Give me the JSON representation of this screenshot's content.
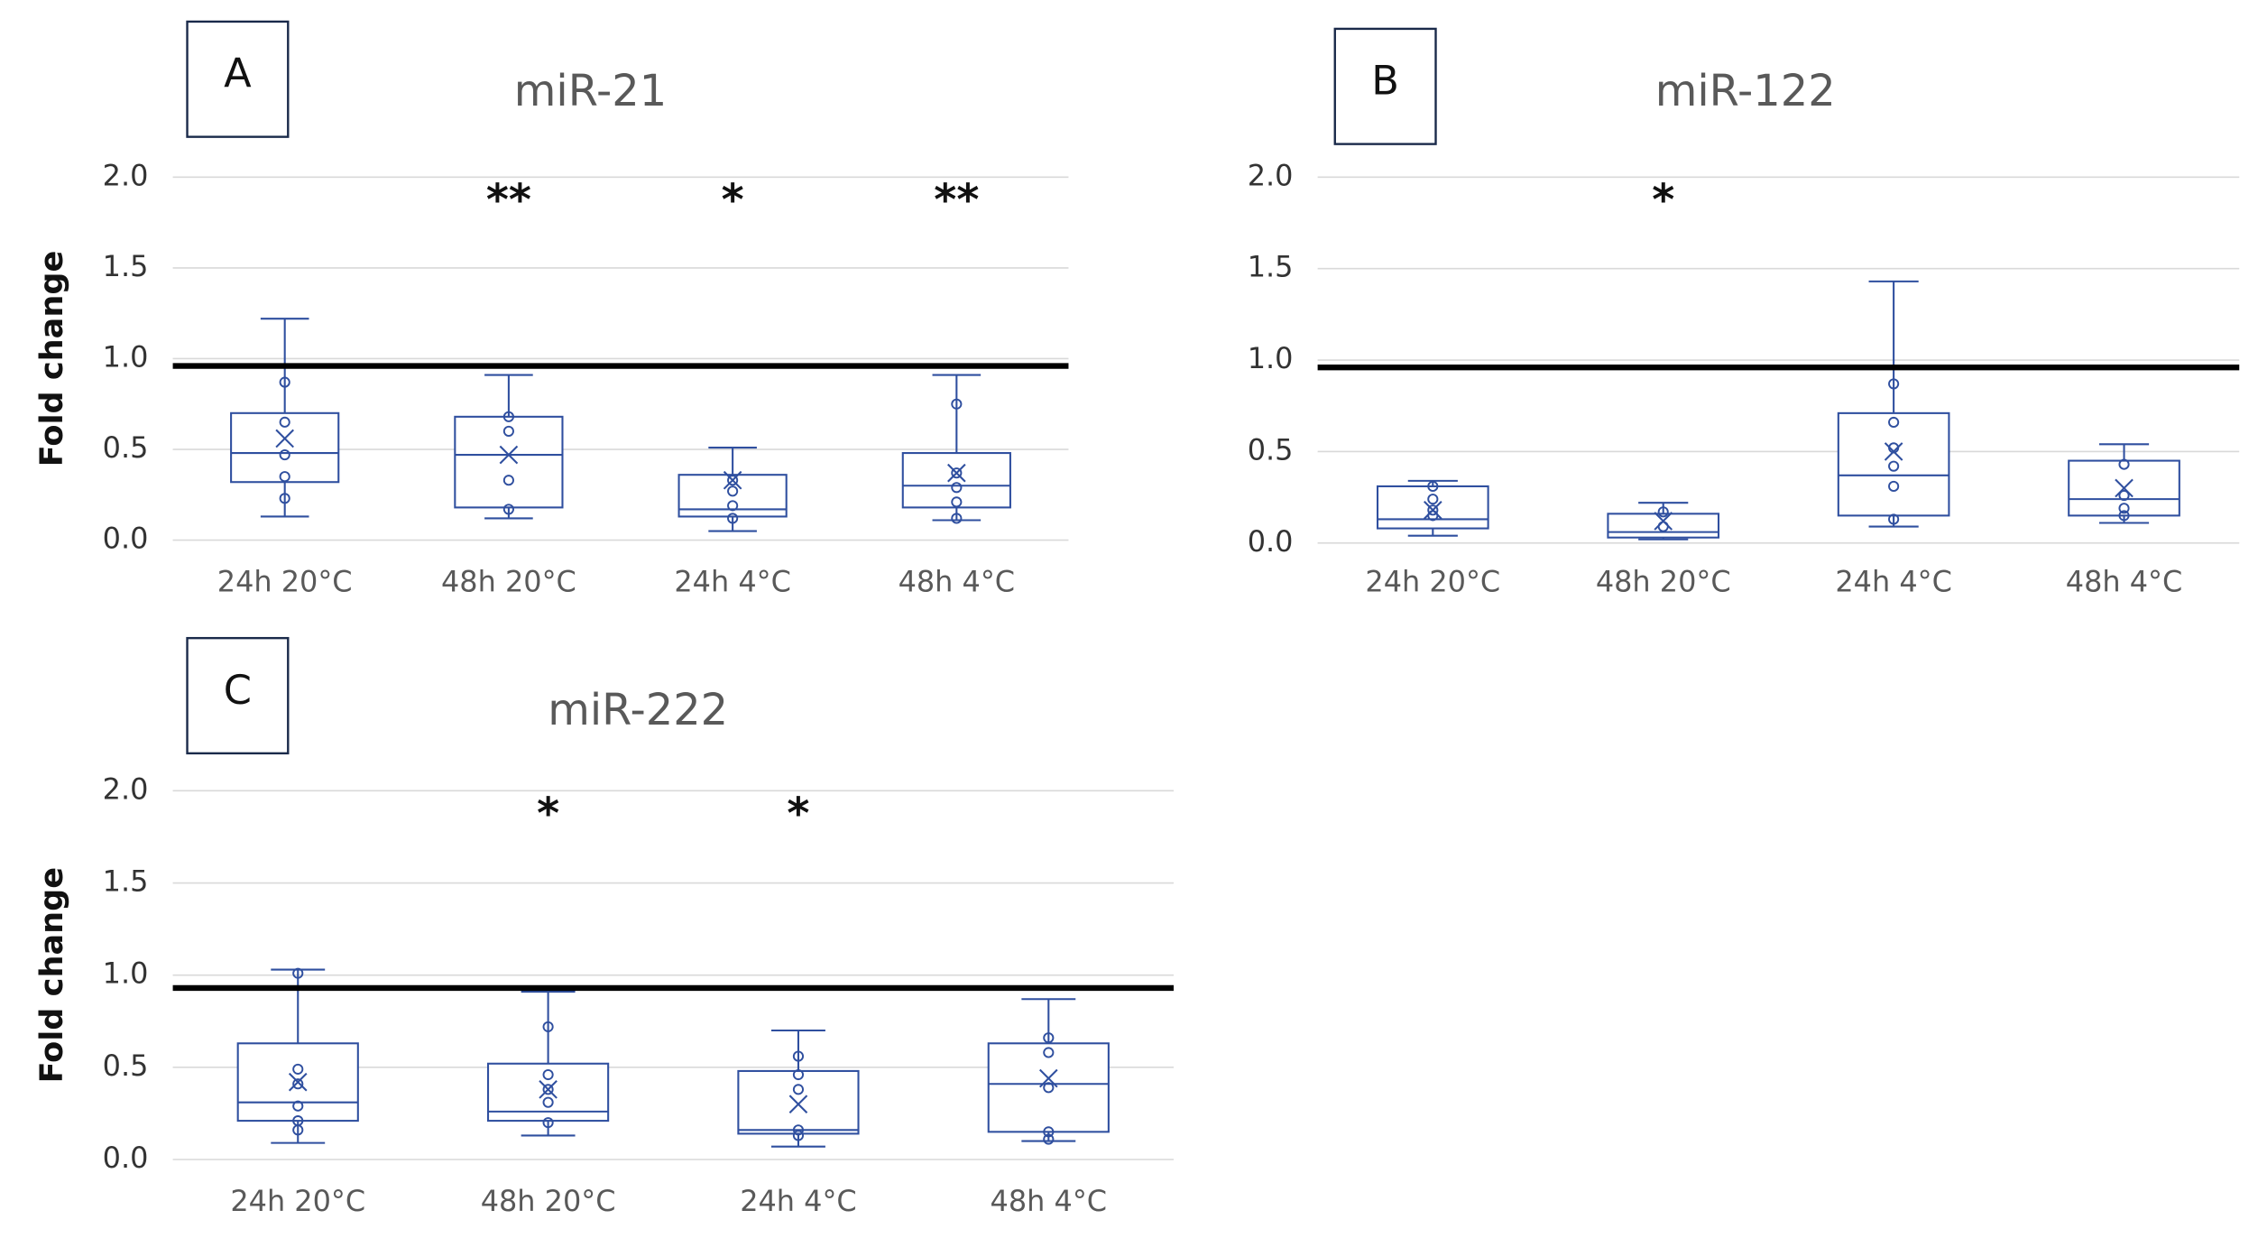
{
  "chart_data": [
    {
      "type": "box",
      "panel": "A",
      "title": "miR-21",
      "y_label": "Fold change",
      "color": "#2f4f9f",
      "categories": [
        "24h 20°C",
        "48h 20°C",
        "24h 4°C",
        "48h 4°C"
      ],
      "ylim": [
        0,
        2.0
      ],
      "yticks": [
        {
          "value": 0,
          "label": "0.0"
        },
        {
          "value": 0.5,
          "label": "0.5"
        },
        {
          "value": 1,
          "label": "1.0"
        },
        {
          "value": 1.5,
          "label": "1.5"
        },
        {
          "value": 2,
          "label": "2.0"
        }
      ],
      "grid": true,
      "reference_line": 0.96,
      "significance": [
        null,
        "**",
        "*",
        "**"
      ],
      "boxes": [
        {
          "min": 0.13,
          "q1": 0.32,
          "median": 0.48,
          "q3": 0.7,
          "max": 1.22,
          "mean": 0.56,
          "points": [
            0.87,
            0.65,
            0.47,
            0.35,
            0.23
          ]
        },
        {
          "min": 0.12,
          "q1": 0.18,
          "median": 0.47,
          "q3": 0.68,
          "max": 0.91,
          "mean": 0.47,
          "points": [
            0.68,
            0.6,
            0.33,
            0.17
          ]
        },
        {
          "min": 0.05,
          "q1": 0.13,
          "median": 0.17,
          "q3": 0.36,
          "max": 0.51,
          "mean": 0.33,
          "points": [
            0.33,
            0.27,
            0.19,
            0.12
          ]
        },
        {
          "min": 0.11,
          "q1": 0.18,
          "median": 0.3,
          "q3": 0.48,
          "max": 0.91,
          "mean": 0.37,
          "points": [
            0.75,
            0.37,
            0.29,
            0.21,
            0.12
          ]
        }
      ]
    },
    {
      "type": "box",
      "panel": "B",
      "title": "miR-122",
      "color": "#2f4f9f",
      "categories": [
        "24h 20°C",
        "48h 20°C",
        "24h 4°C",
        "48h 4°C"
      ],
      "ylim": [
        0,
        2.0
      ],
      "yticks": [
        {
          "value": 0,
          "label": "0.0"
        },
        {
          "value": 0.5,
          "label": "0.5"
        },
        {
          "value": 1,
          "label": "1.0"
        },
        {
          "value": 1.5,
          "label": "1.5"
        },
        {
          "value": 2,
          "label": "2.0"
        }
      ],
      "grid": true,
      "reference_line": 0.96,
      "significance": [
        null,
        "*",
        null,
        null
      ],
      "boxes": [
        {
          "min": 0.04,
          "q1": 0.08,
          "median": 0.13,
          "q3": 0.31,
          "max": 0.34,
          "mean": 0.18,
          "points": [
            0.31,
            0.24,
            0.18,
            0.15
          ]
        },
        {
          "min": 0.02,
          "q1": 0.03,
          "median": 0.06,
          "q3": 0.16,
          "max": 0.22,
          "mean": 0.12,
          "points": [
            0.17,
            0.09
          ]
        },
        {
          "min": 0.09,
          "q1": 0.15,
          "median": 0.37,
          "q3": 0.71,
          "max": 1.43,
          "mean": 0.5,
          "points": [
            0.87,
            0.66,
            0.52,
            0.42,
            0.31,
            0.13
          ]
        },
        {
          "min": 0.11,
          "q1": 0.15,
          "median": 0.24,
          "q3": 0.45,
          "max": 0.54,
          "mean": 0.3,
          "points": [
            0.43,
            0.26,
            0.19,
            0.15
          ]
        }
      ]
    },
    {
      "type": "box",
      "panel": "C",
      "title": "miR-222",
      "y_label": "Fold change",
      "color": "#2f4f9f",
      "categories": [
        "24h 20°C",
        "48h 20°C",
        "24h 4°C",
        "48h 4°C"
      ],
      "ylim": [
        0,
        2.0
      ],
      "yticks": [
        {
          "value": 0,
          "label": "0.0"
        },
        {
          "value": 0.5,
          "label": "0.5"
        },
        {
          "value": 1,
          "label": "1.0"
        },
        {
          "value": 1.5,
          "label": "1.5"
        },
        {
          "value": 2,
          "label": "2.0"
        }
      ],
      "grid": true,
      "reference_line": 0.93,
      "significance": [
        null,
        "*",
        "*",
        null
      ],
      "boxes": [
        {
          "min": 0.09,
          "q1": 0.21,
          "median": 0.31,
          "q3": 0.63,
          "max": 1.03,
          "mean": 0.42,
          "points": [
            1.01,
            0.49,
            0.41,
            0.29,
            0.21,
            0.16
          ]
        },
        {
          "min": 0.13,
          "q1": 0.21,
          "median": 0.26,
          "q3": 0.52,
          "max": 0.91,
          "mean": 0.38,
          "points": [
            0.72,
            0.46,
            0.38,
            0.31,
            0.2
          ]
        },
        {
          "min": 0.07,
          "q1": 0.14,
          "median": 0.16,
          "q3": 0.48,
          "max": 0.7,
          "mean": 0.3,
          "points": [
            0.56,
            0.46,
            0.38,
            0.16,
            0.13
          ]
        },
        {
          "min": 0.1,
          "q1": 0.15,
          "median": 0.41,
          "q3": 0.63,
          "max": 0.87,
          "mean": 0.44,
          "points": [
            0.66,
            0.58,
            0.39,
            0.15,
            0.11
          ]
        }
      ]
    }
  ]
}
